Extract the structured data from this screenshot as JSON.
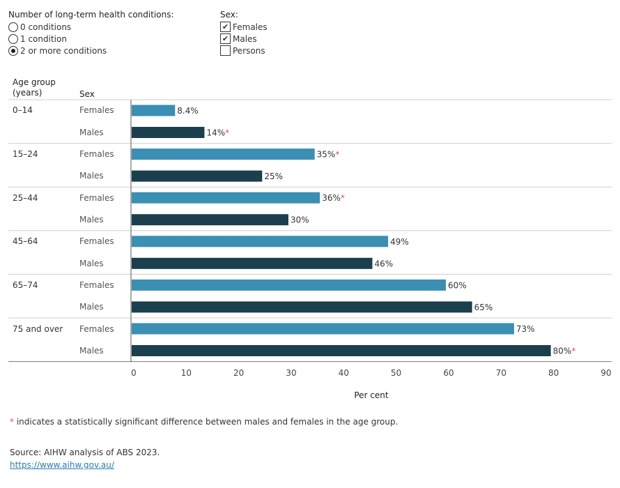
{
  "filters": {
    "conditions": {
      "title": "Number of long-term health conditions:",
      "options": [
        "0 conditions",
        "1 condition",
        "2 or more conditions"
      ],
      "selected_index": 2
    },
    "sex": {
      "title": "Sex:",
      "options": [
        {
          "label": "Females",
          "checked": true
        },
        {
          "label": "Males",
          "checked": true
        },
        {
          "label": "Persons",
          "checked": false
        }
      ]
    }
  },
  "headers": {
    "age_group_line1": "Age group",
    "age_group_line2": "(years)",
    "sex": "Sex"
  },
  "chart_data": {
    "type": "bar",
    "orientation": "horizontal",
    "categories": [
      "0–14",
      "15–24",
      "25–44",
      "45–64",
      "65–74",
      "75 and over"
    ],
    "series": [
      {
        "name": "Females",
        "color": "#3a8fb3",
        "values": [
          8.4,
          35,
          36,
          49,
          60,
          73
        ],
        "labels": [
          "8.4%",
          "35%",
          "36%",
          "49%",
          "60%",
          "73%"
        ],
        "significant": [
          false,
          true,
          true,
          false,
          false,
          false
        ]
      },
      {
        "name": "Males",
        "color": "#1c3f4e",
        "values": [
          14,
          25,
          30,
          46,
          65,
          80
        ],
        "labels": [
          "14%",
          "25%",
          "30%",
          "46%",
          "65%",
          "80%"
        ],
        "significant": [
          true,
          false,
          false,
          false,
          false,
          true
        ]
      }
    ],
    "xlabel": "Per cent",
    "xlim": [
      0,
      90
    ],
    "xticks": [
      0,
      10,
      20,
      30,
      40,
      50,
      60,
      70,
      80,
      90
    ],
    "grid": false
  },
  "footnote": {
    "star": "*",
    "text": " indicates a statistically significant difference between males and females in the age group."
  },
  "source": {
    "text": "Source: AIHW analysis of ABS 2023.",
    "link": "https://www.aihw.gov.au/"
  },
  "colors": {
    "females": "#3a8fb3",
    "males": "#1c3f4e",
    "significance": "#d9534f"
  }
}
